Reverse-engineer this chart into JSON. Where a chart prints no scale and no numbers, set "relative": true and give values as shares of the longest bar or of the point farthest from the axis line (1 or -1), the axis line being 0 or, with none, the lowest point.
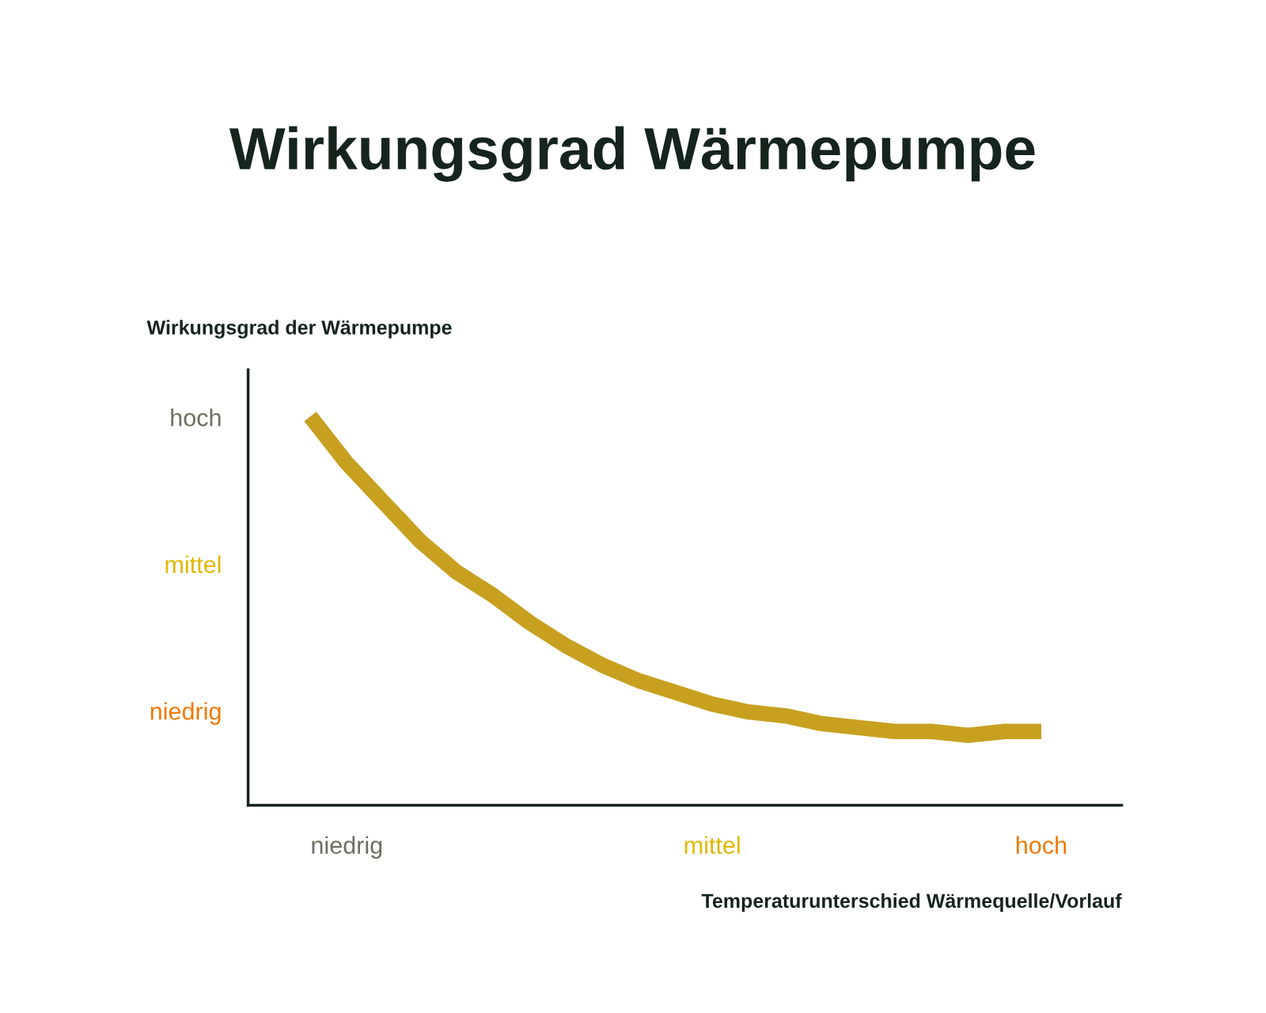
{
  "chart_data": {
    "type": "line",
    "title": "Wirkungsgrad Wärmepumpe",
    "ylabel": "Wirkungsgrad der Wärmepumpe",
    "xlabel": "Temperaturunterschied Wärmequelle/Vorlauf",
    "relative": true,
    "grid": false,
    "legend": false,
    "categories": [
      null,
      "niedrig",
      null,
      null,
      null,
      null,
      null,
      null,
      null,
      null,
      null,
      "mittel",
      null,
      null,
      null,
      null,
      null,
      null,
      null,
      null,
      "hoch"
    ],
    "annotations": [
      "hoch",
      "mittel",
      "niedrig"
    ],
    "series": [
      {
        "values": [
          1.0,
          0.88,
          0.78,
          0.68,
          0.6,
          0.54,
          0.47,
          0.41,
          0.36,
          0.32,
          0.29,
          0.26,
          0.24,
          0.23,
          0.21,
          0.2,
          0.19,
          0.19,
          0.18,
          0.19,
          0.19
        ],
        "color": "#c8a020"
      }
    ]
  }
}
